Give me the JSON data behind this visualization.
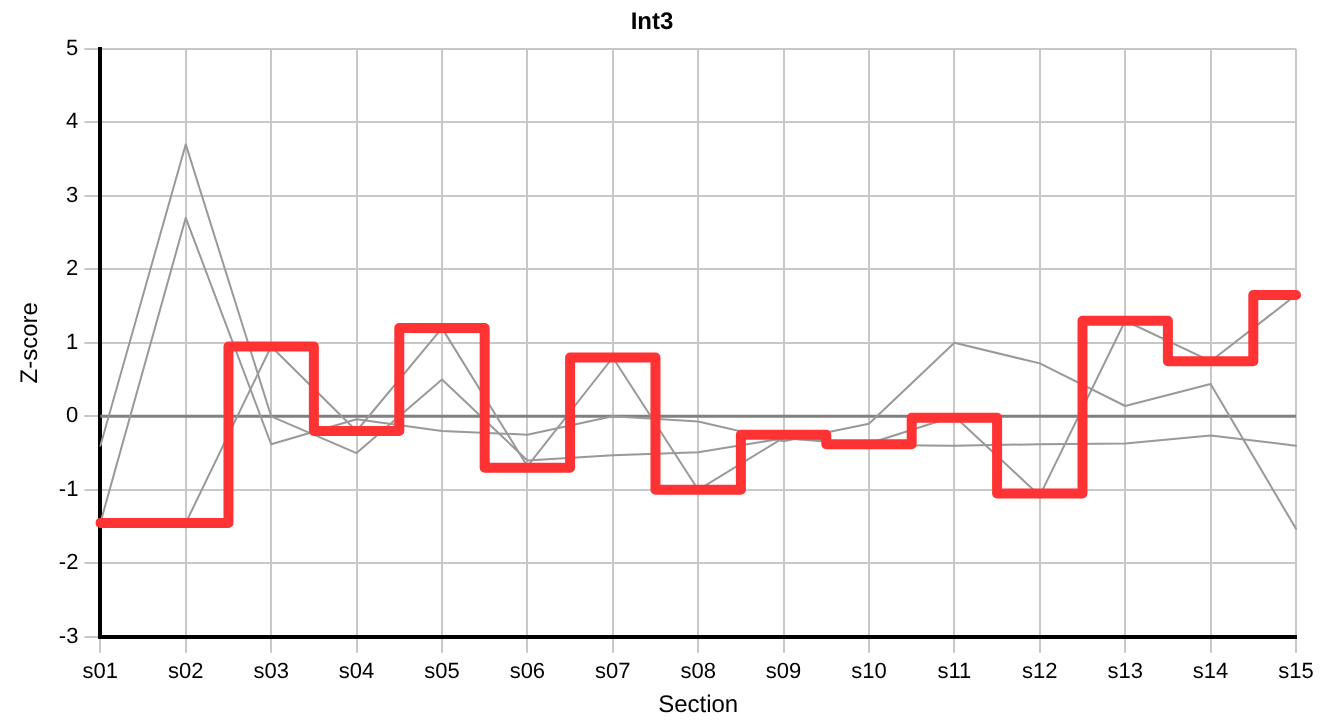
{
  "chart_data": {
    "type": "line",
    "title": "Int3",
    "xlabel": "Section",
    "ylabel": "Z-score",
    "categories": [
      "s01",
      "s02",
      "s03",
      "s04",
      "s05",
      "s06",
      "s07",
      "s08",
      "s09",
      "s10",
      "s11",
      "s12",
      "s13",
      "s14",
      "s15"
    ],
    "ylim": [
      -3,
      5
    ],
    "yticks": [
      -3,
      -2,
      -1,
      0,
      1,
      2,
      3,
      4,
      5
    ],
    "grid": true,
    "legend": false,
    "marker": "none",
    "ref_lines": [
      {
        "axis": "y",
        "value": 0,
        "color": "#808080"
      }
    ],
    "series": [
      {
        "color": "#999999",
        "values": [
          -1.45,
          -1.45,
          0.95,
          -0.2,
          1.2,
          -0.68,
          0.8,
          -1.0,
          -0.29,
          -0.37,
          0,
          -1.08,
          1.3,
          0.75,
          1.65
        ]
      },
      {
        "color": "#999999",
        "values": [
          -1.45,
          2.7,
          -0.38,
          -0.04,
          -0.2,
          -0.25,
          0,
          -0.07,
          -0.34,
          -0.1,
          1.0,
          0.72,
          0.14,
          0.44,
          -1.53
        ]
      },
      {
        "color": "#999999",
        "values": [
          -0.4,
          3.7,
          0,
          -0.5,
          0.5,
          -0.6,
          -0.53,
          -0.49,
          -0.3,
          -0.39,
          -0.4,
          -0.38,
          -0.37,
          -0.26,
          -0.4
        ]
      },
      {
        "type": "step",
        "color": "#ff3333",
        "values": [
          -1.45,
          -1.45,
          0.95,
          -0.2,
          1.2,
          -0.7,
          0.8,
          -1.0,
          -0.25,
          -0.38,
          -0.02,
          -1.05,
          1.3,
          0.75,
          1.65
        ]
      }
    ]
  }
}
